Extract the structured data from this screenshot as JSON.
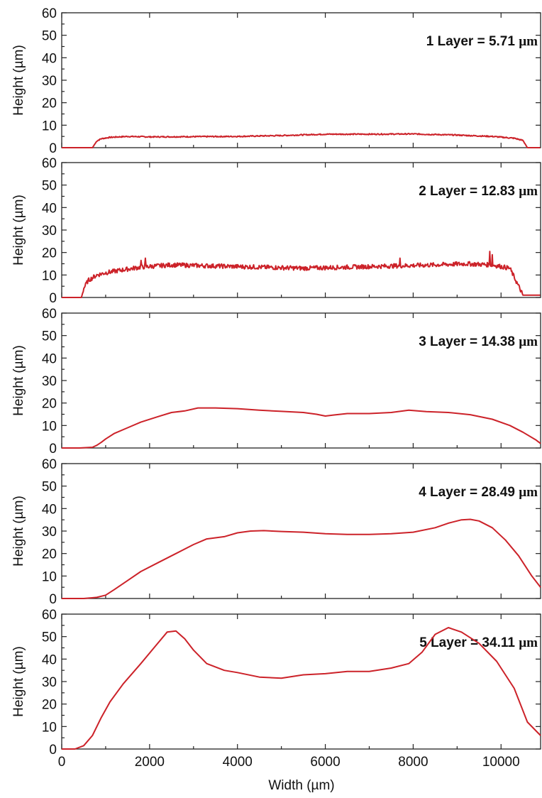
{
  "chart_data": {
    "type": "line",
    "xlabel": "Width (µm)",
    "ylabel": "Height (µm)",
    "xlim": [
      0,
      10900
    ],
    "ylim": [
      0,
      60
    ],
    "x_ticks": [
      "0",
      "2000",
      "4000",
      "6000",
      "8000",
      "10000"
    ],
    "y_ticks": [
      "0",
      "10",
      "20",
      "30",
      "40",
      "50",
      "60"
    ],
    "grid": false,
    "panels": [
      {
        "label_text": "1 Layer = 5.71 ",
        "label_unit": "µm",
        "noise": 0.25,
        "x": [
          0,
          700,
          750,
          800,
          900,
          1100,
          1500,
          2000,
          3000,
          4000,
          5000,
          6000,
          7000,
          8000,
          9000,
          9800,
          10300,
          10500,
          10600,
          10900
        ],
        "y": [
          0,
          0,
          1.5,
          3.0,
          4.0,
          4.6,
          5.0,
          4.8,
          4.9,
          5.0,
          5.4,
          6.0,
          6.0,
          6.1,
          5.6,
          5.0,
          4.2,
          3.2,
          0,
          0
        ]
      },
      {
        "label_text": "2 Layer = 12.83 ",
        "label_unit": "µm",
        "noise": 1.0,
        "x": [
          0,
          450,
          500,
          600,
          800,
          1000,
          1300,
          1800,
          2500,
          3500,
          4500,
          5500,
          6500,
          7500,
          8500,
          9200,
          9800,
          10200,
          10300,
          10400,
          10500,
          10900
        ],
        "y": [
          0,
          0,
          4,
          7.5,
          10,
          11,
          12,
          13.5,
          14.5,
          14,
          13.5,
          13,
          13.5,
          14,
          14.5,
          15,
          14.5,
          13,
          9,
          5,
          1,
          1
        ],
        "spikes": [
          [
            1800,
            16.5
          ],
          [
            1900,
            17.5
          ],
          [
            7700,
            17.5
          ],
          [
            9750,
            20.5
          ],
          [
            9800,
            19
          ]
        ]
      },
      {
        "label_text": "3 Layer = 14.38 ",
        "label_unit": "µm",
        "noise": 0,
        "x": [
          0,
          400,
          700,
          800,
          900,
          1000,
          1200,
          1500,
          1800,
          2200,
          2500,
          2800,
          3100,
          3500,
          4000,
          4500,
          5000,
          5500,
          5800,
          6000,
          6200,
          6500,
          7000,
          7500,
          7900,
          8300,
          8800,
          9300,
          9800,
          10200,
          10500,
          10800,
          10900
        ],
        "y": [
          0,
          0,
          0.3,
          1.2,
          2.5,
          4,
          6.5,
          9,
          11.5,
          14,
          15.8,
          16.5,
          17.8,
          17.8,
          17.5,
          16.8,
          16.3,
          15.8,
          15,
          14.2,
          14.7,
          15.3,
          15.3,
          15.8,
          16.8,
          16.2,
          15.8,
          14.8,
          12.8,
          10,
          7,
          3.5,
          2
        ]
      },
      {
        "label_text": "4 Layer = 28.49 ",
        "label_unit": "µm",
        "noise": 0,
        "x": [
          0,
          500,
          800,
          1000,
          1200,
          1500,
          1800,
          2200,
          2600,
          3000,
          3300,
          3700,
          4000,
          4300,
          4600,
          5000,
          5500,
          6000,
          6500,
          7000,
          7500,
          8000,
          8500,
          8800,
          9100,
          9300,
          9500,
          9800,
          10100,
          10400,
          10700,
          10900
        ],
        "y": [
          0,
          0,
          0.5,
          1.5,
          4,
          8,
          12,
          16,
          20,
          24,
          26.5,
          27.5,
          29.2,
          30,
          30.2,
          29.8,
          29.5,
          28.8,
          28.5,
          28.5,
          28.8,
          29.5,
          31.5,
          33.5,
          35,
          35.2,
          34.5,
          31.5,
          26,
          19,
          10,
          5
        ]
      },
      {
        "label_text": "5 Layer = 34.11 ",
        "label_unit": "µm",
        "noise": 0,
        "x": [
          0,
          300,
          500,
          700,
          900,
          1100,
          1400,
          1800,
          2100,
          2400,
          2600,
          2800,
          3000,
          3300,
          3700,
          4000,
          4500,
          5000,
          5500,
          6000,
          6500,
          7000,
          7500,
          7900,
          8200,
          8500,
          8800,
          9100,
          9500,
          9900,
          10300,
          10600,
          10900
        ],
        "y": [
          0,
          0,
          1.5,
          6,
          14,
          21,
          29,
          38,
          45,
          52,
          52.5,
          49,
          44,
          38,
          35,
          34,
          32,
          31.5,
          33,
          33.5,
          34.5,
          34.5,
          36,
          38,
          43,
          51,
          54,
          52,
          47,
          39,
          27,
          12,
          6
        ]
      }
    ]
  }
}
